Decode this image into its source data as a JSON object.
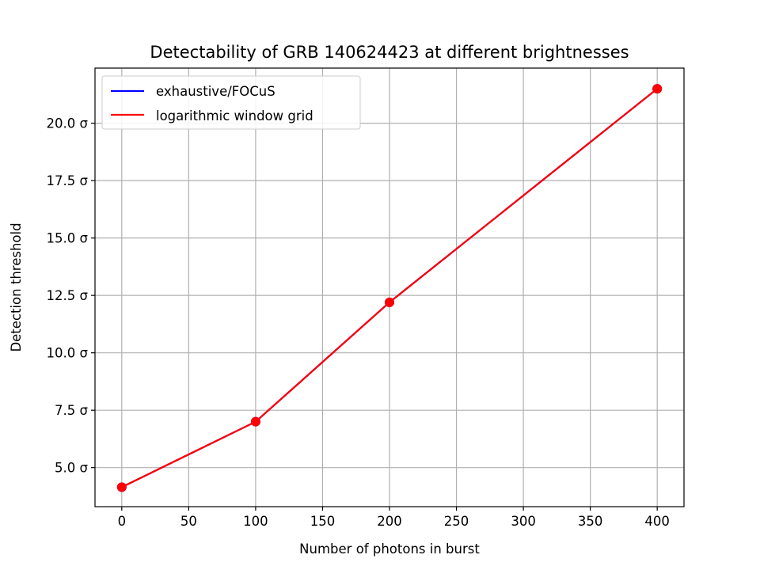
{
  "chart_data": {
    "type": "line",
    "title": "Detectability of GRB 140624423 at different brightnesses",
    "xlabel": "Number of photons in burst",
    "ylabel": "Detection threshold",
    "x": [
      0,
      100,
      200,
      400
    ],
    "series": [
      {
        "name": "exhaustive/FOCuS",
        "color": "#0000ff",
        "values": [
          4.15,
          7.0,
          12.2,
          21.5
        ],
        "markers": true
      },
      {
        "name": "logarithmic window grid",
        "color": "#ff0000",
        "values": [
          4.15,
          7.0,
          12.2,
          21.5
        ],
        "markers": true
      }
    ],
    "xlim": [
      -20,
      420
    ],
    "ylim": [
      3.3,
      22.4
    ],
    "xticks": [
      0,
      50,
      100,
      150,
      200,
      250,
      300,
      350,
      400
    ],
    "yticks": [
      5.0,
      7.5,
      10.0,
      12.5,
      15.0,
      17.5,
      20.0
    ],
    "ytick_labels": [
      "5.0 σ",
      "7.5 σ",
      "10.0 σ",
      "12.5 σ",
      "15.0 σ",
      "17.5 σ",
      "20.0 σ"
    ],
    "grid": true,
    "legend": "top-left"
  }
}
